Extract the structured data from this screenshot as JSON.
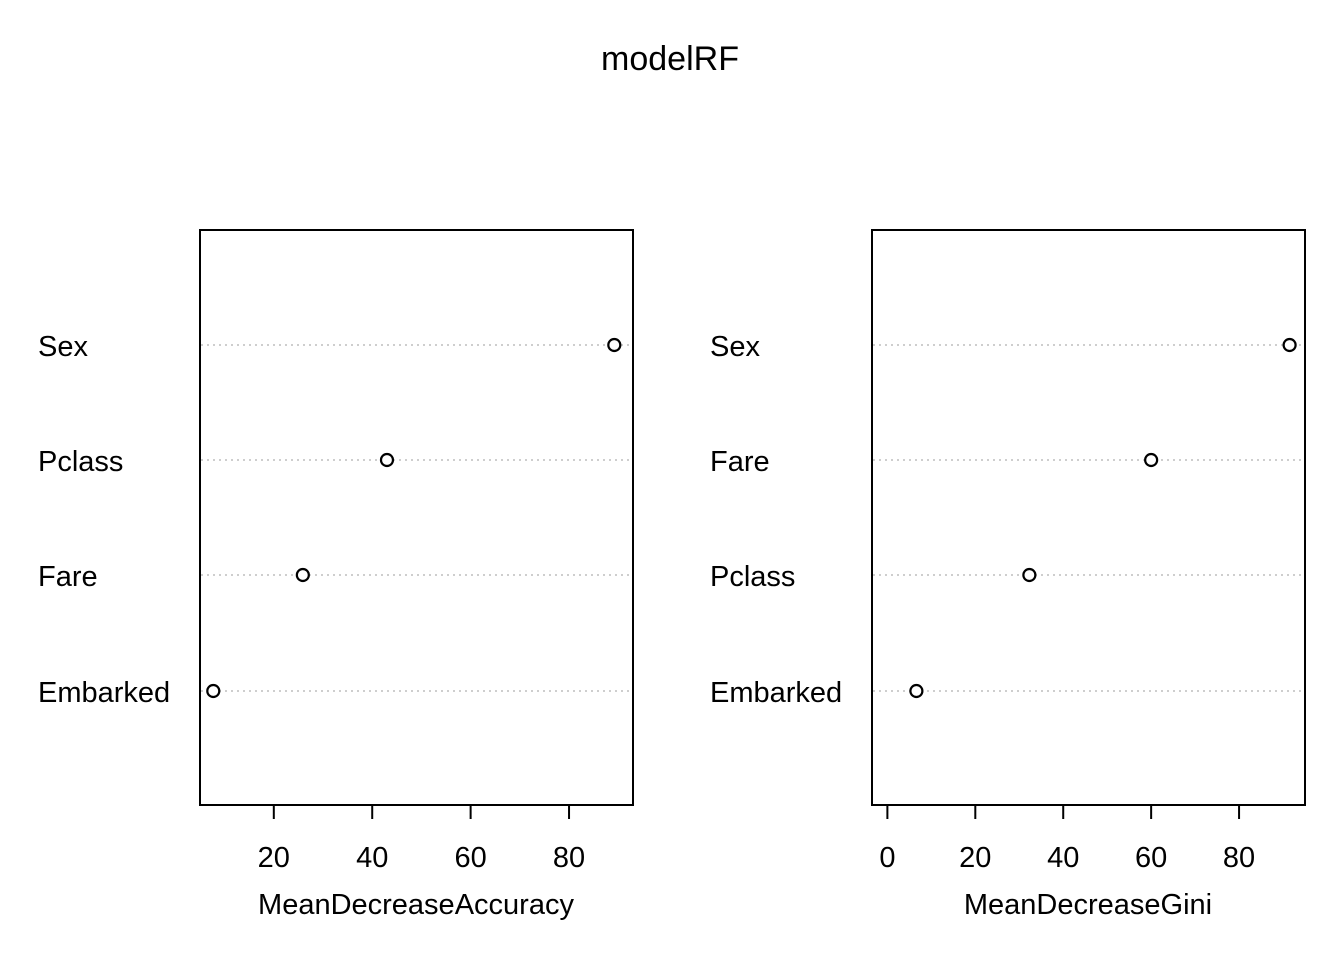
{
  "chart_data": {
    "type": "scatter",
    "title": "modelRF",
    "panels": [
      {
        "variant": "dotchart",
        "xlabel": "MeanDecreaseAccuracy",
        "xlim": [
          5,
          93
        ],
        "xticks": [
          20,
          40,
          60,
          80
        ],
        "categories": [
          "Sex",
          "Pclass",
          "Fare",
          "Embarked"
        ],
        "values": [
          89.2,
          43.0,
          25.9,
          7.7
        ]
      },
      {
        "variant": "dotchart",
        "xlabel": "MeanDecreaseGini",
        "xlim": [
          -3.5,
          95
        ],
        "xticks": [
          0,
          20,
          40,
          60,
          80
        ],
        "categories": [
          "Sex",
          "Fare",
          "Pclass",
          "Embarked"
        ],
        "values": [
          91.5,
          60.0,
          32.3,
          6.6
        ]
      }
    ],
    "grid": false,
    "legend": "none"
  },
  "colors": {
    "point_stroke": "#000000",
    "guide_line": "#bebebe"
  }
}
